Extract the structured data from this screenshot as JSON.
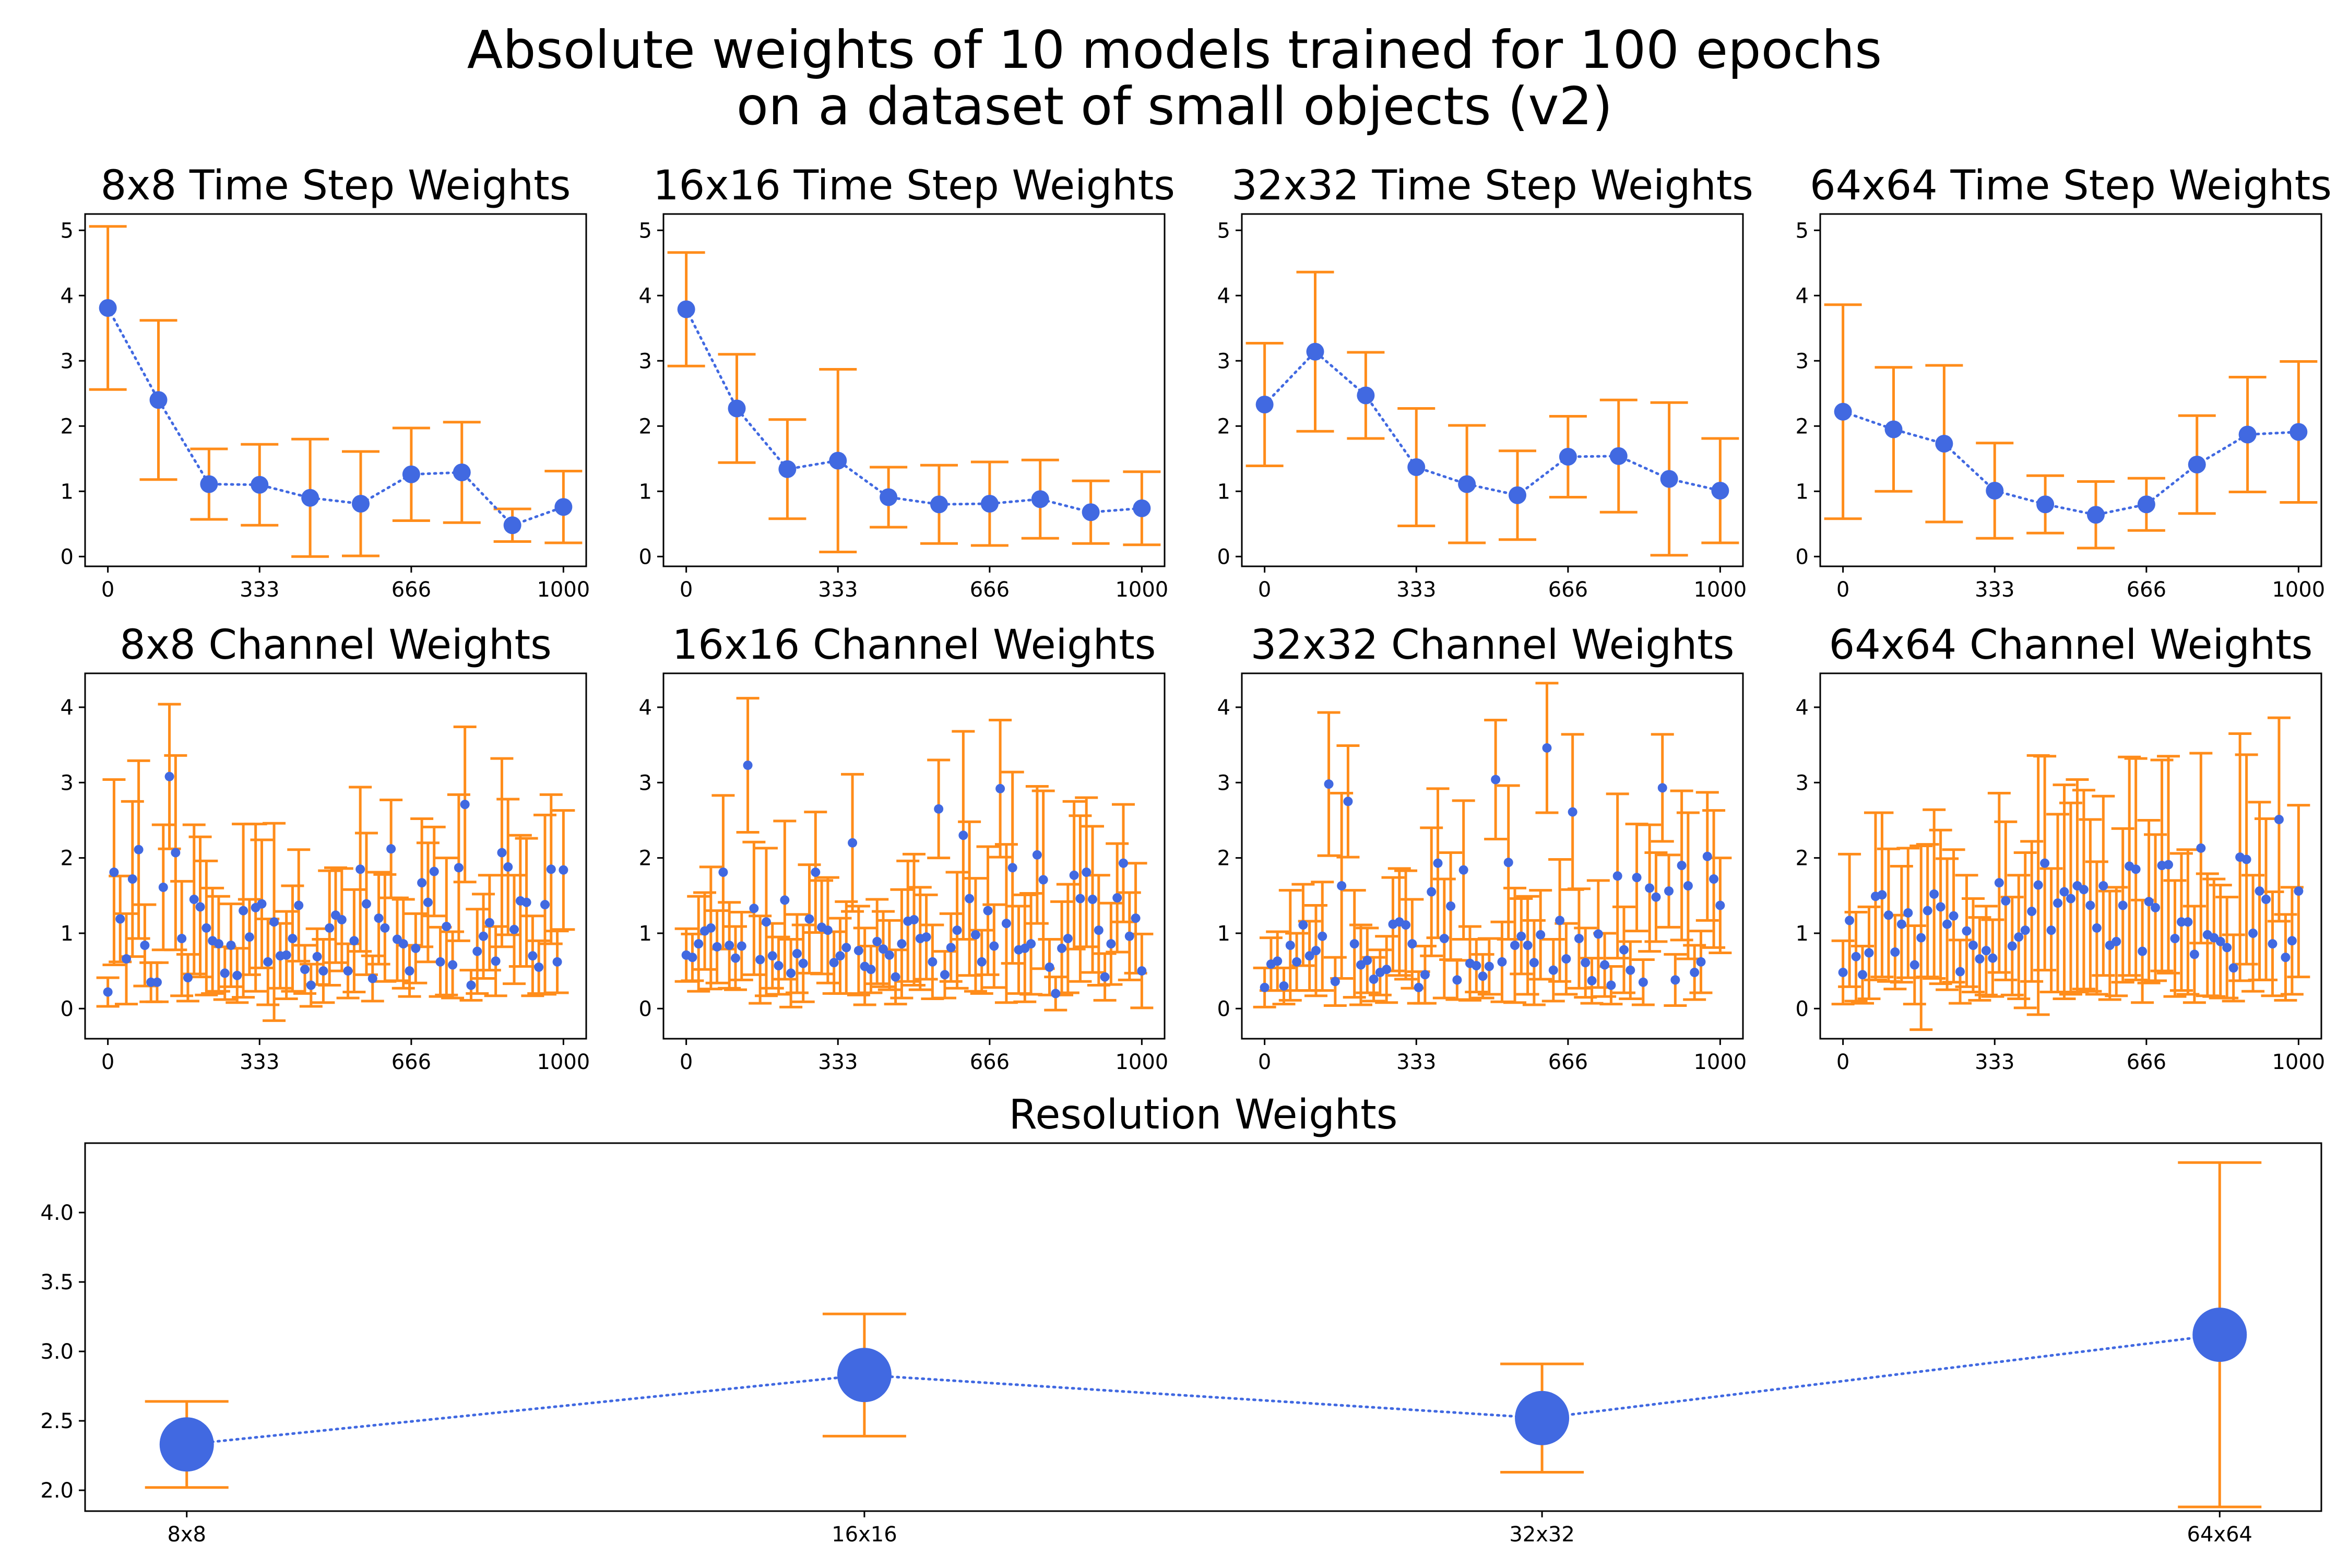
{
  "figure": {
    "title_line1": "Absolute weights of 10 models trained for 100 epochs",
    "title_line2": "on a dataset of small objects (v2)"
  },
  "colors": {
    "marker": "#4169e1",
    "errorbar": "#ff8c1a"
  },
  "chart_data": [
    {
      "id": "ts8",
      "type": "scatter",
      "title": "8x8 Time Step Weights",
      "xlim": [
        -50,
        1050
      ],
      "ylim": [
        -0.15,
        5.25
      ],
      "xticks": [
        0,
        333,
        666,
        1000
      ],
      "yticks": [
        0,
        1,
        2,
        3,
        4,
        5
      ],
      "x": [
        0,
        111,
        222,
        333,
        444,
        555,
        666,
        777,
        888,
        1000
      ],
      "y": [
        3.81,
        2.4,
        1.11,
        1.1,
        0.9,
        0.81,
        1.26,
        1.29,
        0.48,
        0.76
      ],
      "err": [
        1.25,
        1.22,
        0.54,
        0.62,
        0.9,
        0.8,
        0.71,
        0.77,
        0.25,
        0.55
      ]
    },
    {
      "id": "ts16",
      "type": "scatter",
      "title": "16x16 Time Step Weights",
      "xlim": [
        -50,
        1050
      ],
      "ylim": [
        -0.15,
        5.25
      ],
      "xticks": [
        0,
        333,
        666,
        1000
      ],
      "yticks": [
        0,
        1,
        2,
        3,
        4,
        5
      ],
      "x": [
        0,
        111,
        222,
        333,
        444,
        555,
        666,
        777,
        888,
        1000
      ],
      "y": [
        3.79,
        2.27,
        1.34,
        1.47,
        0.91,
        0.8,
        0.81,
        0.88,
        0.68,
        0.74
      ],
      "err": [
        0.87,
        0.83,
        0.76,
        1.4,
        0.46,
        0.6,
        0.64,
        0.6,
        0.48,
        0.56
      ]
    },
    {
      "id": "ts32",
      "type": "scatter",
      "title": "32x32 Time Step Weights",
      "xlim": [
        -50,
        1050
      ],
      "ylim": [
        -0.15,
        5.25
      ],
      "xticks": [
        0,
        333,
        666,
        1000
      ],
      "yticks": [
        0,
        1,
        2,
        3,
        4,
        5
      ],
      "x": [
        0,
        111,
        222,
        333,
        444,
        555,
        666,
        777,
        888,
        1000
      ],
      "y": [
        2.33,
        3.14,
        2.47,
        1.37,
        1.11,
        0.94,
        1.53,
        1.54,
        1.19,
        1.01
      ],
      "err": [
        0.94,
        1.22,
        0.66,
        0.9,
        0.9,
        0.68,
        0.62,
        0.86,
        1.17,
        0.8
      ]
    },
    {
      "id": "ts64",
      "type": "scatter",
      "title": "64x64 Time Step Weights",
      "xlim": [
        -50,
        1050
      ],
      "ylim": [
        -0.15,
        5.25
      ],
      "xticks": [
        0,
        333,
        666,
        1000
      ],
      "yticks": [
        0,
        1,
        2,
        3,
        4,
        5
      ],
      "x": [
        0,
        111,
        222,
        333,
        444,
        555,
        666,
        777,
        888,
        1000
      ],
      "y": [
        2.22,
        1.95,
        1.73,
        1.01,
        0.8,
        0.64,
        0.8,
        1.41,
        1.87,
        1.91
      ],
      "err": [
        1.64,
        0.95,
        1.2,
        0.73,
        0.44,
        0.51,
        0.4,
        0.75,
        0.88,
        1.08
      ]
    },
    {
      "id": "ch8",
      "type": "scatter",
      "title": "8x8 Channel Weights",
      "xlim": [
        -50,
        1050
      ],
      "ylim": [
        -0.4,
        4.45
      ],
      "xticks": [
        0,
        333,
        666,
        1000
      ],
      "yticks": [
        0,
        1,
        2,
        3,
        4
      ],
      "x_start": 0,
      "x_end": 1000,
      "y": [
        0.22,
        1.81,
        1.19,
        0.66,
        1.72,
        2.11,
        0.84,
        0.35,
        0.35,
        1.61,
        3.08,
        2.07,
        0.93,
        0.41,
        1.45,
        1.35,
        1.07,
        0.9,
        0.86,
        0.47,
        0.84,
        0.44,
        1.3,
        0.95,
        1.34,
        1.39,
        0.62,
        1.15,
        0.7,
        0.71,
        0.93,
        1.37,
        0.52,
        0.31,
        0.69,
        0.5,
        1.07,
        1.24,
        1.18,
        0.5,
        0.9,
        1.85,
        1.39,
        0.4,
        1.2,
        1.07,
        2.12,
        0.92,
        0.86,
        0.5,
        0.8,
        1.67,
        1.41,
        1.82,
        0.62,
        1.09,
        0.58,
        1.87,
        2.71,
        0.31,
        0.76,
        0.96,
        1.14,
        0.63,
        2.07,
        1.88,
        1.05,
        1.43,
        1.41,
        0.7,
        0.55,
        1.38,
        1.85,
        0.62,
        1.84
      ],
      "err": [
        0.19,
        1.23,
        0.57,
        0.6,
        1.03,
        1.18,
        0.54,
        0.26,
        0.26,
        0.83,
        0.96,
        1.29,
        0.76,
        0.31,
        0.99,
        0.93,
        0.89,
        0.7,
        0.63,
        0.35,
        0.55,
        0.36,
        1.15,
        0.5,
        1.11,
        0.85,
        0.57,
        1.31,
        0.43,
        0.58,
        0.7,
        0.74,
        0.32,
        0.28,
        0.37,
        0.42,
        0.76,
        0.63,
        0.68,
        0.36,
        0.68,
        1.09,
        0.94,
        0.3,
        0.61,
        0.71,
        0.65,
        0.55,
        0.59,
        0.34,
        0.46,
        0.85,
        0.79,
        0.59,
        0.46,
        0.91,
        0.44,
        0.97,
        1.03,
        0.2,
        0.56,
        0.56,
        0.63,
        0.46,
        1.25,
        0.9,
        0.72,
        0.87,
        0.85,
        0.53,
        0.35,
        1.19,
        0.99,
        0.41,
        0.79
      ]
    },
    {
      "id": "ch16",
      "type": "scatter",
      "title": "16x16 Channel Weights",
      "xlim": [
        -50,
        1050
      ],
      "ylim": [
        -0.4,
        4.45
      ],
      "xticks": [
        0,
        333,
        666,
        1000
      ],
      "yticks": [
        0,
        1,
        2,
        3,
        4
      ],
      "x_start": 0,
      "x_end": 1000,
      "y": [
        0.71,
        0.68,
        0.86,
        1.03,
        1.07,
        0.82,
        1.81,
        0.84,
        0.67,
        0.83,
        3.23,
        1.33,
        0.65,
        1.15,
        0.7,
        0.57,
        1.44,
        0.47,
        0.73,
        0.6,
        1.19,
        1.81,
        1.08,
        1.04,
        0.61,
        0.7,
        0.81,
        2.2,
        0.77,
        0.56,
        0.52,
        0.89,
        0.79,
        0.71,
        0.42,
        0.86,
        1.16,
        1.18,
        0.93,
        0.95,
        0.62,
        2.65,
        0.45,
        0.81,
        1.04,
        2.3,
        1.46,
        0.98,
        0.62,
        1.3,
        0.83,
        2.92,
        1.13,
        1.87,
        0.78,
        0.8,
        0.86,
        2.04,
        1.71,
        0.55,
        0.2,
        0.8,
        0.93,
        1.77,
        1.46,
        1.81,
        1.45,
        1.04,
        0.42,
        0.86,
        1.47,
        1.93,
        0.96,
        1.2,
        0.5
      ],
      "err": [
        0.35,
        0.31,
        0.63,
        0.51,
        0.81,
        0.48,
        1.02,
        0.57,
        0.42,
        0.45,
        0.89,
        0.88,
        0.58,
        0.98,
        0.43,
        0.38,
        1.05,
        0.45,
        0.52,
        0.51,
        0.72,
        0.8,
        0.62,
        0.7,
        0.41,
        0.5,
        0.61,
        0.91,
        0.59,
        0.51,
        0.31,
        0.56,
        0.5,
        0.46,
        0.36,
        0.72,
        0.8,
        0.87,
        0.68,
        0.56,
        0.49,
        0.65,
        0.31,
        0.45,
        0.77,
        1.38,
        1.02,
        0.75,
        0.42,
        0.85,
        0.55,
        0.91,
        1.05,
        1.27,
        0.58,
        0.71,
        0.67,
        0.91,
        1.18,
        0.37,
        0.22,
        0.62,
        0.72,
        0.98,
        1.1,
        0.99,
        0.97,
        0.73,
        0.31,
        0.54,
        0.72,
        0.78,
        0.58,
        0.73,
        0.49
      ]
    },
    {
      "id": "ch32",
      "type": "scatter",
      "title": "32x32 Channel Weights",
      "xlim": [
        -50,
        1050
      ],
      "ylim": [
        -0.4,
        4.45
      ],
      "xticks": [
        0,
        333,
        666,
        1000
      ],
      "yticks": [
        0,
        1,
        2,
        3,
        4
      ],
      "x_start": 0,
      "x_end": 1000,
      "y": [
        0.28,
        0.59,
        0.63,
        0.3,
        0.84,
        0.62,
        1.11,
        0.7,
        0.77,
        0.96,
        2.98,
        0.36,
        1.63,
        2.75,
        0.86,
        0.58,
        0.64,
        0.39,
        0.48,
        0.52,
        1.12,
        1.15,
        1.11,
        0.86,
        0.28,
        0.45,
        1.55,
        1.93,
        0.93,
        1.36,
        0.38,
        1.84,
        0.6,
        0.57,
        0.43,
        0.56,
        3.04,
        0.62,
        1.94,
        0.84,
        0.96,
        0.84,
        0.61,
        0.98,
        3.46,
        0.51,
        1.17,
        0.66,
        2.61,
        0.93,
        0.61,
        0.37,
        0.99,
        0.58,
        0.31,
        1.76,
        0.78,
        0.51,
        1.74,
        0.35,
        1.6,
        1.48,
        2.93,
        1.56,
        0.38,
        1.9,
        1.63,
        0.48,
        0.62,
        2.02,
        1.72,
        1.37
      ],
      "err": [
        0.26,
        0.35,
        0.39,
        0.24,
        0.73,
        0.38,
        0.54,
        0.46,
        0.6,
        0.72,
        0.95,
        0.32,
        1.23,
        0.74,
        0.71,
        0.53,
        0.43,
        0.29,
        0.3,
        0.44,
        0.62,
        0.71,
        0.72,
        0.59,
        0.21,
        0.38,
        0.85,
        0.99,
        0.79,
        0.71,
        0.26,
        0.92,
        0.49,
        0.35,
        0.29,
        0.37,
        0.79,
        0.53,
        1.02,
        0.76,
        0.5,
        0.65,
        0.56,
        0.59,
        0.86,
        0.41,
        0.81,
        0.47,
        1.03,
        0.66,
        0.46,
        0.3,
        0.71,
        0.42,
        0.25,
        1.09,
        0.57,
        0.38,
        0.71,
        0.3,
        0.84,
        0.59,
        0.71,
        0.48,
        0.34,
        0.99,
        0.97,
        0.36,
        0.41,
        0.85,
        0.91,
        0.63
      ]
    },
    {
      "id": "ch64",
      "type": "scatter",
      "title": "64x64 Channel Weights",
      "xlim": [
        -50,
        1050
      ],
      "ylim": [
        -0.4,
        4.45
      ],
      "xticks": [
        0,
        333,
        666,
        1000
      ],
      "yticks": [
        0,
        1,
        2,
        3,
        4
      ],
      "x_start": 0,
      "x_end": 1000,
      "y": [
        0.48,
        1.17,
        0.69,
        0.45,
        0.74,
        1.49,
        1.51,
        1.24,
        0.75,
        1.12,
        1.27,
        0.58,
        0.94,
        1.3,
        1.52,
        1.35,
        1.12,
        1.23,
        0.49,
        1.03,
        0.84,
        0.66,
        0.77,
        0.67,
        1.67,
        1.43,
        0.83,
        0.95,
        1.04,
        1.29,
        1.64,
        1.93,
        1.04,
        1.4,
        1.55,
        1.46,
        1.63,
        1.58,
        1.37,
        1.07,
        1.63,
        0.84,
        0.89,
        1.37,
        1.89,
        1.85,
        0.76,
        1.42,
        1.34,
        1.9,
        1.91,
        0.93,
        1.15,
        1.15,
        0.72,
        2.13,
        0.98,
        0.94,
        0.89,
        0.81,
        0.54,
        2.01,
        1.98,
        1.0,
        1.56,
        1.45,
        0.86,
        2.51,
        0.68,
        0.9,
        1.56
      ],
      "err": [
        0.42,
        0.88,
        0.59,
        0.38,
        0.61,
        1.11,
        1.09,
        0.88,
        0.49,
        0.77,
        0.86,
        0.52,
        1.22,
        0.88,
        1.12,
        1.02,
        0.87,
        0.88,
        0.42,
        0.74,
        0.62,
        0.55,
        0.59,
        0.51,
        1.19,
        1.05,
        0.65,
        0.82,
        1.03,
        0.93,
        1.72,
        1.42,
        0.82,
        1.18,
        1.42,
        1.27,
        1.41,
        1.32,
        1.14,
        0.88,
        1.19,
        0.72,
        0.72,
        1.02,
        1.45,
        1.47,
        0.68,
        1.08,
        0.97,
        1.4,
        1.44,
        0.77,
        0.91,
        0.96,
        0.64,
        1.26,
        0.81,
        0.78,
        0.75,
        0.67,
        0.44,
        1.64,
        1.39,
        0.77,
        1.18,
        1.07,
        0.69,
        1.35,
        0.57,
        0.71,
        1.14
      ]
    },
    {
      "id": "res",
      "type": "scatter",
      "title": "Resolution Weights",
      "categories": [
        "8x8",
        "16x16",
        "32x32",
        "64x64"
      ],
      "xlim": [
        -0.15,
        3.15
      ],
      "ylim": [
        1.85,
        4.5
      ],
      "yticks": [
        2.0,
        2.5,
        3.0,
        3.5,
        4.0
      ],
      "ytick_labels": [
        "2.0",
        "2.5",
        "3.0",
        "3.5",
        "4.0"
      ],
      "y": [
        2.33,
        2.83,
        2.52,
        3.12
      ],
      "err": [
        0.31,
        0.44,
        0.39,
        1.24
      ]
    }
  ]
}
